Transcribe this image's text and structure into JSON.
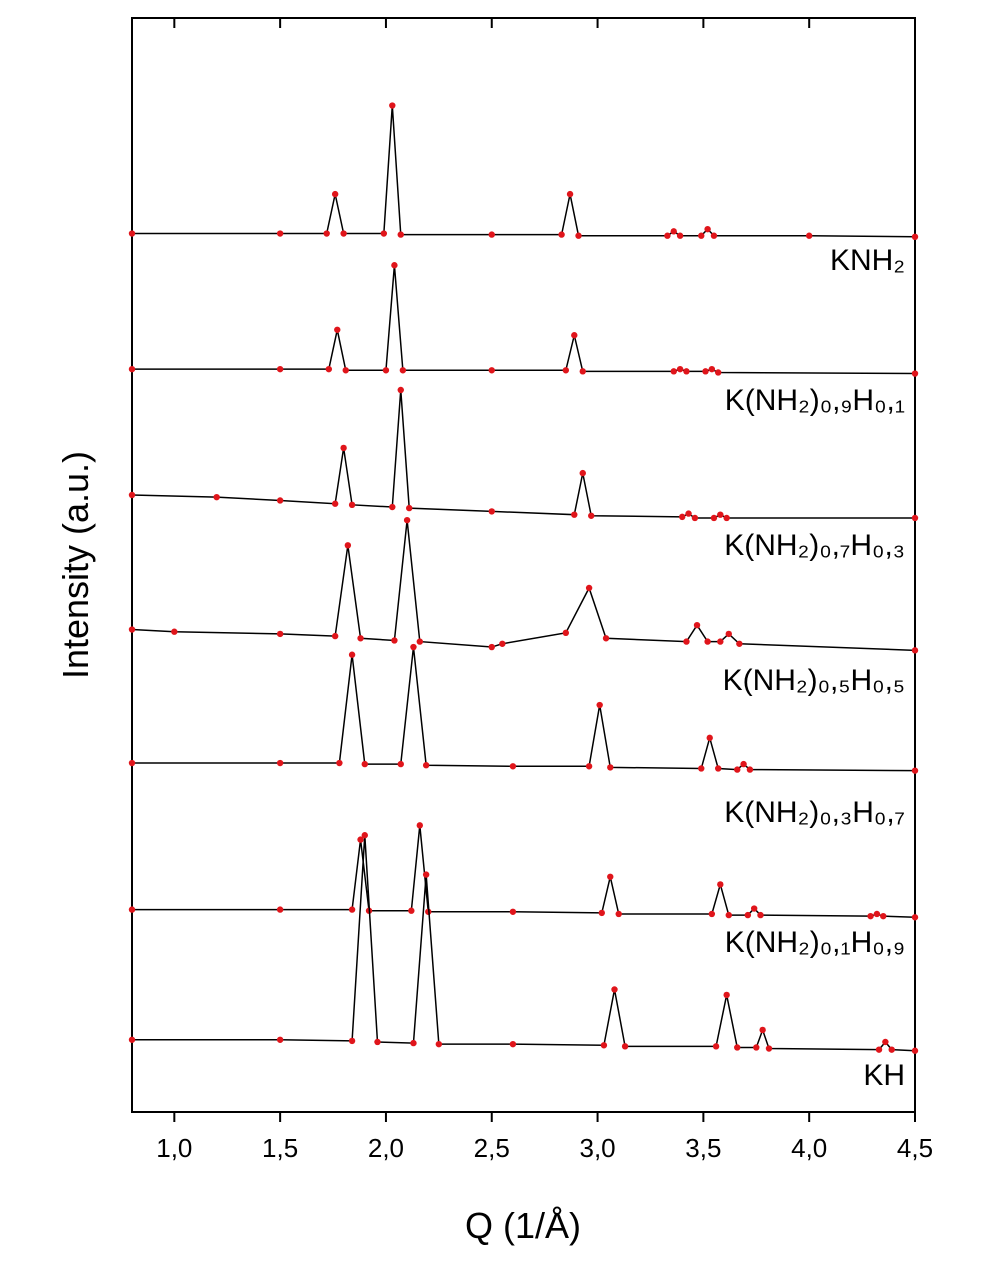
{
  "chart_data": {
    "type": "line",
    "xlabel": "Q (1/Å)",
    "ylabel": "Intensity (a.u.)",
    "xlim": [
      0.8,
      4.5
    ],
    "ylim": [
      0,
      100
    ],
    "xticks": [
      {
        "value": 1.0,
        "label": "1,0"
      },
      {
        "value": 1.5,
        "label": "1,5"
      },
      {
        "value": 2.0,
        "label": "2,0"
      },
      {
        "value": 2.5,
        "label": "2,5"
      },
      {
        "value": 3.0,
        "label": "3,0"
      },
      {
        "value": 3.5,
        "label": "3,5"
      },
      {
        "value": 4.0,
        "label": "4,0"
      },
      {
        "value": 4.5,
        "label": "4,5"
      }
    ],
    "line_color": "#000000",
    "series": [
      {
        "name": "KNH₂",
        "color": "#e0151b",
        "x": [
          0.8,
          1.5,
          1.72,
          1.76,
          1.8,
          1.99,
          2.03,
          2.07,
          2.5,
          2.83,
          2.87,
          2.91,
          3.33,
          3.36,
          3.39,
          3.49,
          3.52,
          3.55,
          4.0,
          4.5
        ],
        "values": [
          80.3,
          80.3,
          80.3,
          83.9,
          80.3,
          80.3,
          92.0,
          80.2,
          80.2,
          80.2,
          83.9,
          80.1,
          80.1,
          80.5,
          80.1,
          80.1,
          80.7,
          80.1,
          80.1,
          80.0
        ]
      },
      {
        "name": "K(NH₂)₀,₉H₀,₁",
        "color": "#e0151b",
        "x": [
          0.8,
          1.5,
          1.73,
          1.77,
          1.81,
          2.0,
          2.04,
          2.08,
          2.5,
          2.85,
          2.89,
          2.93,
          3.36,
          3.39,
          3.42,
          3.51,
          3.54,
          3.57,
          4.5
        ],
        "values": [
          67.9,
          67.9,
          67.9,
          71.5,
          67.8,
          67.8,
          77.4,
          67.8,
          67.8,
          67.8,
          71.0,
          67.7,
          67.7,
          67.9,
          67.7,
          67.7,
          67.9,
          67.6,
          67.5
        ]
      },
      {
        "name": "K(NH₂)₀,₇H₀,₃",
        "color": "#e0151b",
        "x": [
          0.8,
          1.2,
          1.5,
          1.76,
          1.8,
          1.84,
          2.03,
          2.07,
          2.11,
          2.5,
          2.89,
          2.93,
          2.97,
          3.4,
          3.43,
          3.46,
          3.55,
          3.58,
          3.61,
          4.5
        ],
        "values": [
          56.4,
          56.2,
          55.9,
          55.6,
          60.7,
          55.5,
          55.3,
          66.0,
          55.2,
          54.9,
          54.6,
          58.4,
          54.5,
          54.4,
          54.7,
          54.3,
          54.3,
          54.6,
          54.3,
          54.3
        ]
      },
      {
        "name": "K(NH₂)₀,₅H₀,₅",
        "color": "#e0151b",
        "x": [
          0.8,
          1.0,
          1.5,
          1.76,
          1.82,
          1.88,
          2.04,
          2.1,
          2.16,
          2.5,
          2.55,
          2.85,
          2.96,
          3.04,
          3.42,
          3.47,
          3.52,
          3.58,
          3.62,
          3.67,
          4.5
        ],
        "values": [
          44.1,
          43.9,
          43.7,
          43.5,
          51.8,
          43.3,
          43.1,
          54.1,
          43.0,
          42.5,
          42.8,
          43.8,
          47.9,
          43.3,
          43.0,
          44.5,
          43.0,
          43.0,
          43.7,
          42.8,
          42.2
        ]
      },
      {
        "name": "K(NH₂)₀,₃H₀,₇",
        "color": "#e0151b",
        "x": [
          0.8,
          1.5,
          1.78,
          1.84,
          1.9,
          2.07,
          2.13,
          2.19,
          2.6,
          2.96,
          3.01,
          3.06,
          3.49,
          3.53,
          3.57,
          3.66,
          3.69,
          3.72,
          4.5
        ],
        "values": [
          31.9,
          31.9,
          31.9,
          41.8,
          31.8,
          31.8,
          42.5,
          31.7,
          31.6,
          31.6,
          37.2,
          31.5,
          31.4,
          34.2,
          31.4,
          31.3,
          31.8,
          31.3,
          31.2
        ]
      },
      {
        "name": "K(NH₂)₀,₁H₀,₉",
        "color": "#e0151b",
        "x": [
          0.8,
          1.5,
          1.84,
          1.88,
          1.92,
          2.12,
          2.16,
          2.2,
          2.6,
          3.02,
          3.06,
          3.1,
          3.54,
          3.58,
          3.62,
          3.71,
          3.74,
          3.77,
          4.29,
          4.32,
          4.35,
          4.5
        ],
        "values": [
          18.5,
          18.5,
          18.5,
          24.9,
          18.4,
          18.4,
          26.2,
          18.3,
          18.3,
          18.2,
          21.5,
          18.1,
          18.1,
          20.8,
          18.0,
          18.0,
          18.6,
          18.0,
          17.9,
          18.1,
          17.9,
          17.8
        ]
      },
      {
        "name": "KH",
        "color": "#e0151b",
        "x": [
          0.8,
          1.5,
          1.84,
          1.9,
          1.96,
          2.13,
          2.19,
          2.25,
          2.6,
          3.03,
          3.08,
          3.13,
          3.56,
          3.61,
          3.66,
          3.75,
          3.78,
          3.81,
          4.33,
          4.36,
          4.39,
          4.5
        ],
        "values": [
          6.6,
          6.6,
          6.5,
          25.3,
          6.4,
          6.3,
          21.7,
          6.2,
          6.2,
          6.1,
          11.2,
          6.0,
          6.0,
          10.7,
          5.9,
          5.9,
          7.5,
          5.8,
          5.7,
          6.4,
          5.7,
          5.6
        ]
      }
    ]
  }
}
